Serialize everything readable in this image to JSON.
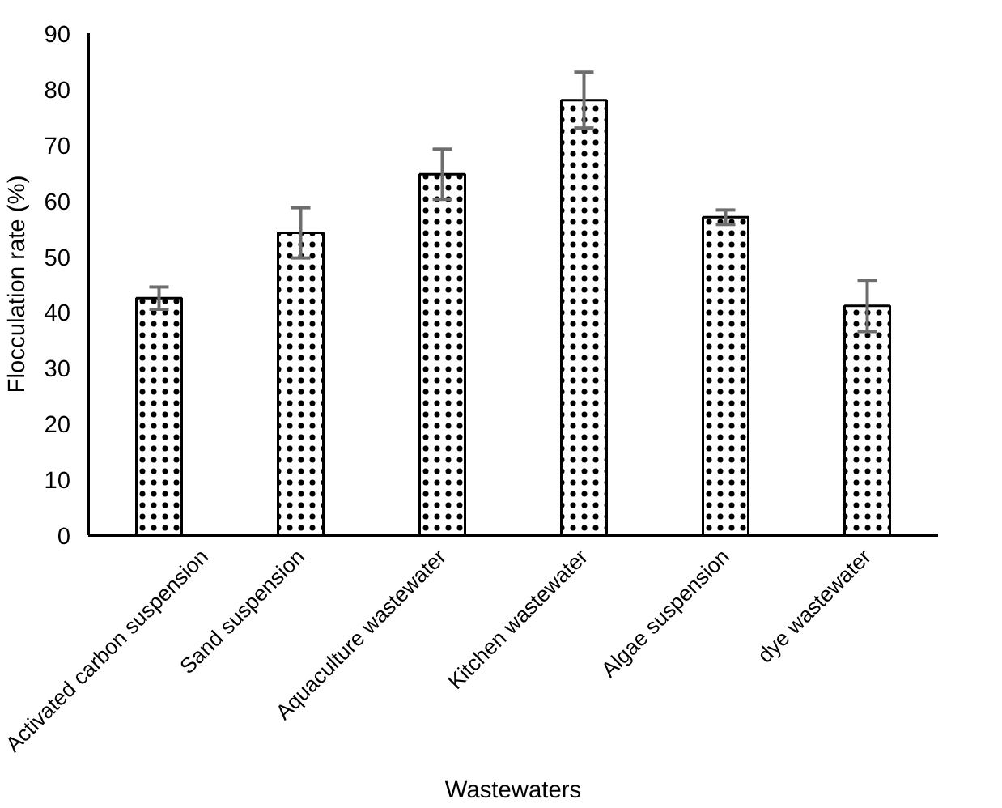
{
  "chart_data": {
    "type": "bar",
    "xlabel": "Wastewaters",
    "ylabel": "Flocculation rate (%)",
    "categories": [
      "Activated carbon suspension",
      "Sand suspension",
      "Aquaculture wastewater",
      "Kitchen wastewater",
      "Algae suspension",
      "dye wastewater"
    ],
    "values": [
      42.5,
      54.2,
      64.7,
      78.0,
      57.0,
      41.1
    ],
    "errors": [
      2,
      4.5,
      4.5,
      5,
      1.3,
      4.6
    ],
    "color": "#ffffff",
    "ylim": [
      0,
      90
    ],
    "yticks": [
      0,
      10,
      20,
      30,
      40,
      50,
      60,
      70,
      80,
      90
    ],
    "grid": false
  }
}
